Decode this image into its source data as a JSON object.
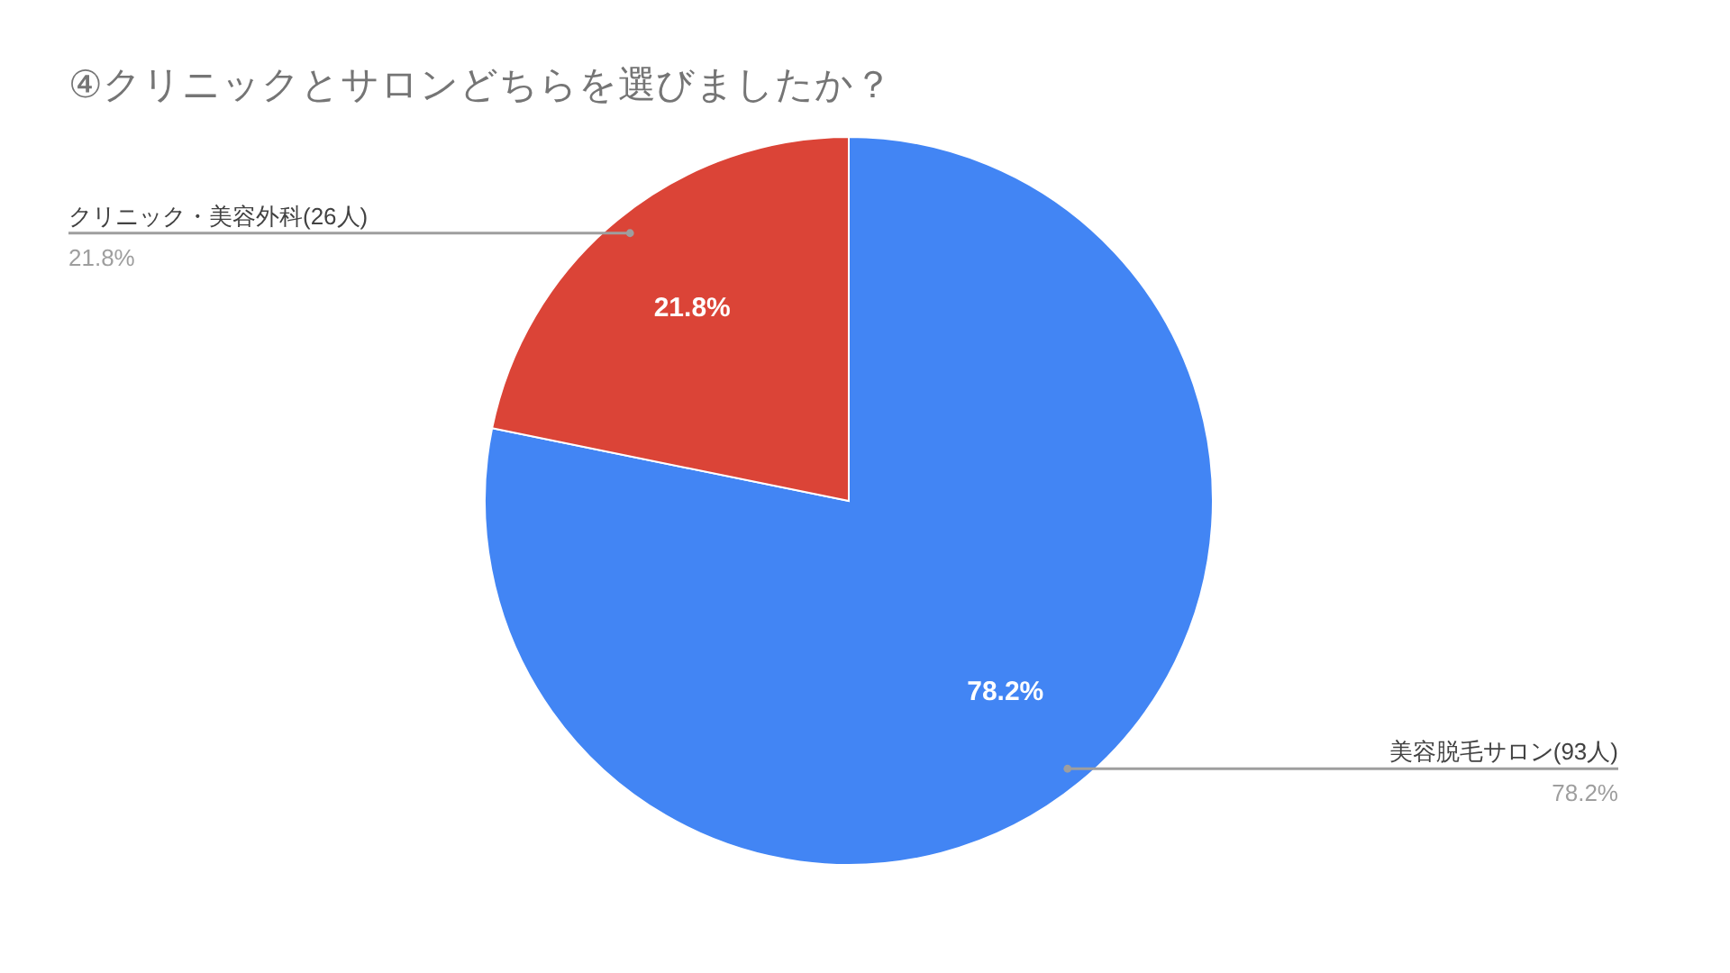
{
  "chart_data": {
    "type": "pie",
    "title": "④クリニックとサロンどちらを選びましたか？",
    "categories": [
      "美容脱毛サロン(93人)",
      "クリニック・美容外科(26人)"
    ],
    "values": [
      78.2,
      21.8
    ],
    "colors": [
      "#4285f4",
      "#db4437"
    ],
    "value_labels": [
      "78.2%",
      "21.8%"
    ]
  }
}
